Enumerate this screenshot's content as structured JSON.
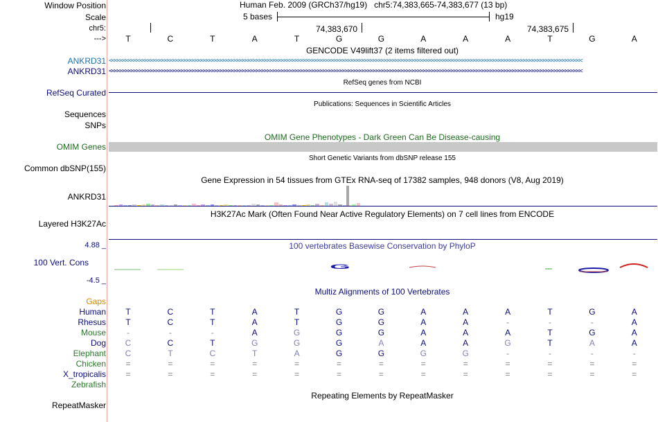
{
  "header": {
    "window_position_label": "Window Position",
    "scale_label": "Scale",
    "chrom_label": "chr5:",
    "arrow_label": "--->",
    "assembly_title": "Human Feb. 2009 (GRCh37/hg19)   chr5:74,383,665-74,383,677 (13 bp)",
    "scale_text": "5 bases",
    "scale_db": "hg19",
    "coord_1": "74,383,670",
    "coord_2": "74,383,675"
  },
  "bases": [
    "T",
    "C",
    "T",
    "A",
    "T",
    "G",
    "G",
    "A",
    "A",
    "A",
    "T",
    "G",
    "A"
  ],
  "tracks": {
    "gencode_title": "GENCODE V49lift37 (2 items filtered out)",
    "gencode_items": [
      {
        "label": "ANKRD31",
        "color": "#1f72a8"
      },
      {
        "label": "ANKRD31",
        "color": "#0c0c78"
      }
    ],
    "refseq_title": "RefSeq genes from NCBI",
    "refseq_label": "RefSeq Curated",
    "pubs_title": "Publications: Sequences in Scientific Articles",
    "sequences_label": "Sequences",
    "snps_label": "SNPs",
    "omim_title": "OMIM Gene Phenotypes - Dark Green Can Be Disease-causing",
    "omim_label": "OMIM Genes",
    "dbsnp_title": "Short Genetic Variants from dbSNP release 155",
    "dbsnp_label": "Common dbSNP(155)",
    "gtex_title": "Gene Expression in 54 tissues from GTEx RNA-seq of 17382 samples, 948 donors (V8, Aug 2019)",
    "gtex_label": "ANKRD31",
    "h3k27_title": "H3K27Ac Mark (Often Found Near Active Regulatory Elements) on 7 cell lines from ENCODE",
    "h3k27_label": "Layered H3K27Ac",
    "cons_title": "100 vertebrates Basewise Conservation by PhyloP",
    "cons_max": "4.88 _",
    "cons_label": "100 Vert. Cons",
    "cons_min": "-4.5 _",
    "cons_glyph": "G",
    "multiz_title": "Multiz Alignments of 100 Vertebrates",
    "gaps_label": "Gaps",
    "repeat_title": "Repeating Elements by RepeatMasker",
    "repeat_label": "RepeatMasker"
  },
  "alignment": [
    {
      "species": "Human",
      "color": "#0c0c78",
      "bases": [
        "T",
        "C",
        "T",
        "A",
        "T",
        "G",
        "G",
        "A",
        "A",
        "A",
        "T",
        "G",
        "A"
      ]
    },
    {
      "species": "Rhesus",
      "color": "#0c0c78",
      "bases": [
        "T",
        "C",
        "T",
        "A",
        "T",
        "G",
        "G",
        "A",
        "A",
        "-",
        "-",
        "-",
        "A"
      ]
    },
    {
      "species": "Mouse",
      "color": "#2a7a2a",
      "bases": [
        "-",
        "-",
        "-",
        "A",
        "G",
        "G",
        "G",
        "A",
        "A",
        "A",
        "T",
        "G",
        "A"
      ]
    },
    {
      "species": "Dog",
      "color": "#0c0c78",
      "bases": [
        "C",
        "C",
        "T",
        "G",
        "G",
        "G",
        "A",
        "A",
        "A",
        "G",
        "T",
        "A",
        "A"
      ]
    },
    {
      "species": "Elephant",
      "color": "#2a7a2a",
      "bases": [
        "C",
        "T",
        "C",
        "T",
        "A",
        "G",
        "G",
        "G",
        "G",
        "-",
        "-",
        "-",
        "-"
      ]
    },
    {
      "species": "Chicken",
      "color": "#2a7a2a",
      "bases": [
        "=",
        "=",
        "=",
        "=",
        "=",
        "=",
        "=",
        "=",
        "=",
        "=",
        "=",
        "=",
        "="
      ]
    },
    {
      "species": "X_tropicalis",
      "color": "#0c0c78",
      "bases": [
        "=",
        "=",
        "=",
        "=",
        "=",
        "=",
        "=",
        "=",
        "=",
        "=",
        "=",
        "=",
        "="
      ]
    },
    {
      "species": "Zebrafish",
      "color": "#2a7a2a",
      "bases": []
    }
  ],
  "colors": {
    "match": "#0c0c78",
    "mismatch": "#8080b8",
    "gap": "#888888",
    "omim_bar": "#c8c8c8"
  }
}
